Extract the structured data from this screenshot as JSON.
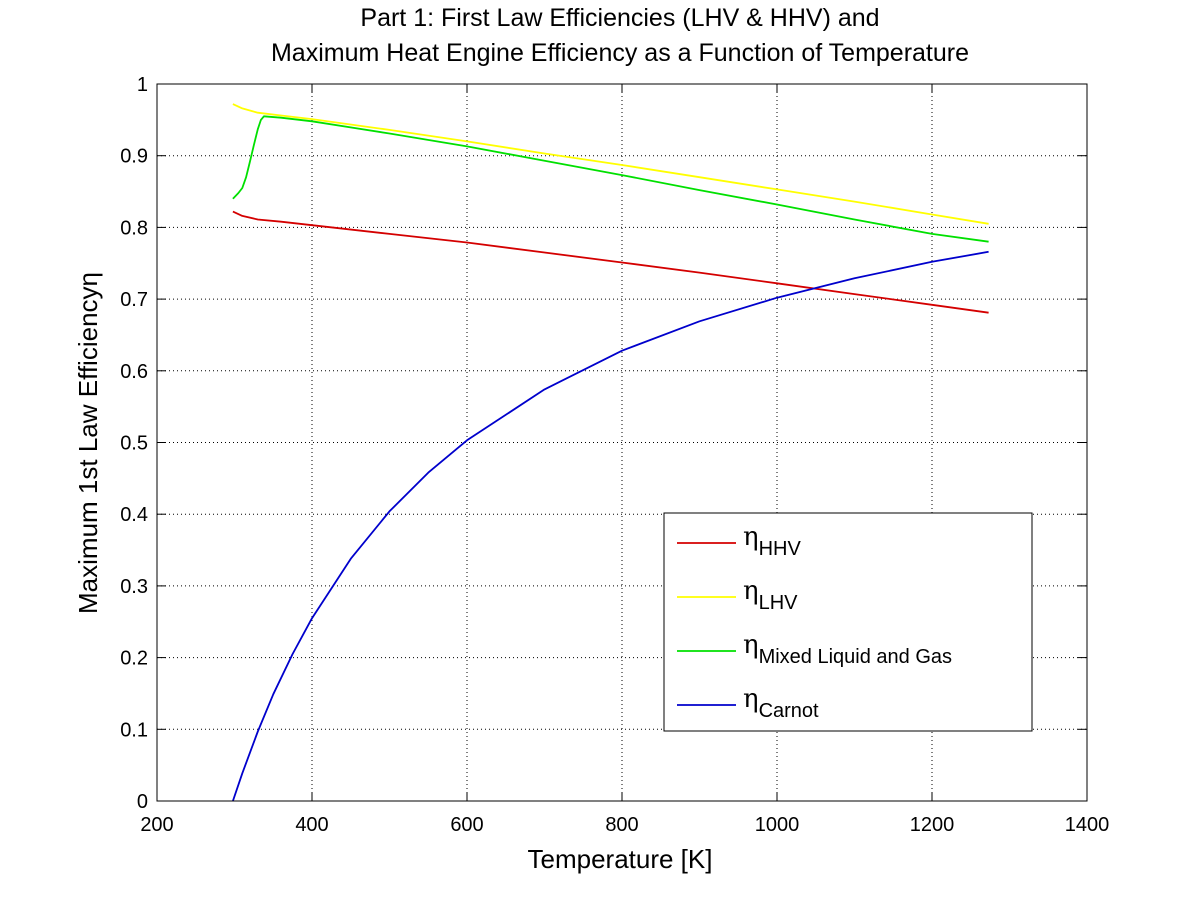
{
  "chart_data": {
    "type": "line",
    "title_line1": "Part 1: First Law Efficiencies (LHV & HHV) and",
    "title_line2": "Maximum Heat Engine Efficiency as a Function of Temperature",
    "xlabel": "Temperature [K]",
    "ylabel": "Maximum 1st Law Efficiencyη",
    "xlim": [
      200,
      1400
    ],
    "ylim": [
      0,
      1
    ],
    "xticks": [
      200,
      400,
      600,
      800,
      1000,
      1200,
      1400
    ],
    "xtick_labels": [
      "200",
      "400",
      "600",
      "800",
      "1000",
      "1200",
      "1400"
    ],
    "yticks": [
      0,
      0.1,
      0.2,
      0.3,
      0.4,
      0.5,
      0.6,
      0.7,
      0.8,
      0.9,
      1
    ],
    "ytick_labels": [
      "0",
      "0.1",
      "0.2",
      "0.3",
      "0.4",
      "0.5",
      "0.6",
      "0.7",
      "0.8",
      "0.9",
      "1"
    ],
    "grid": true,
    "legend_position": "lower-right",
    "series": [
      {
        "name": "η",
        "subscript": "HHV",
        "color": "#d40000",
        "x": [
          298,
          310,
          330,
          360,
          400,
          500,
          600,
          700,
          800,
          900,
          1000,
          1100,
          1200,
          1273
        ],
        "y": [
          0.822,
          0.816,
          0.811,
          0.808,
          0.803,
          0.791,
          0.779,
          0.765,
          0.751,
          0.737,
          0.722,
          0.707,
          0.692,
          0.681
        ]
      },
      {
        "name": "η",
        "subscript": "LHV",
        "color": "#ffff00",
        "x": [
          298,
          310,
          330,
          360,
          400,
          500,
          600,
          700,
          800,
          900,
          1000,
          1100,
          1200,
          1273
        ],
        "y": [
          0.972,
          0.966,
          0.96,
          0.956,
          0.951,
          0.936,
          0.92,
          0.903,
          0.887,
          0.87,
          0.853,
          0.836,
          0.818,
          0.805
        ]
      },
      {
        "name": "η",
        "subscript": "Mixed Liquid and Gas",
        "color": "#00e000",
        "x": [
          298,
          305,
          310,
          315,
          320,
          325,
          330,
          334,
          338,
          360,
          400,
          500,
          600,
          700,
          800,
          900,
          1000,
          1100,
          1200,
          1273
        ],
        "y": [
          0.84,
          0.848,
          0.855,
          0.87,
          0.892,
          0.915,
          0.937,
          0.95,
          0.955,
          0.953,
          0.948,
          0.931,
          0.913,
          0.893,
          0.873,
          0.852,
          0.832,
          0.811,
          0.791,
          0.78
        ]
      },
      {
        "name": "η",
        "subscript": "Carnot",
        "color": "#0000cc",
        "x": [
          298,
          310,
          330,
          350,
          375,
          400,
          450,
          500,
          550,
          600,
          700,
          800,
          900,
          1000,
          1100,
          1200,
          1273
        ],
        "y": [
          0.0,
          0.0387,
          0.097,
          0.149,
          0.205,
          0.255,
          0.338,
          0.404,
          0.458,
          0.503,
          0.574,
          0.628,
          0.669,
          0.702,
          0.729,
          0.752,
          0.766
        ]
      }
    ]
  }
}
